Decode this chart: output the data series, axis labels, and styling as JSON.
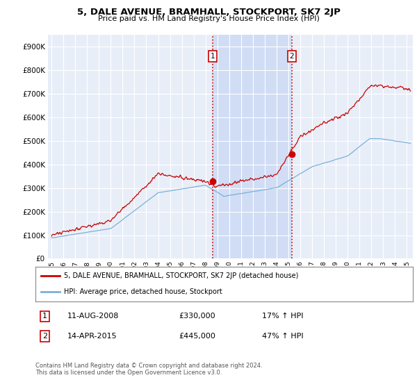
{
  "title": "5, DALE AVENUE, BRAMHALL, STOCKPORT, SK7 2JP",
  "subtitle": "Price paid vs. HM Land Registry's House Price Index (HPI)",
  "ytick_values": [
    0,
    100000,
    200000,
    300000,
    400000,
    500000,
    600000,
    700000,
    800000,
    900000
  ],
  "ylim": [
    0,
    950000
  ],
  "xlim_start": 1994.7,
  "xlim_end": 2025.5,
  "bg_color": "#ffffff",
  "plot_bg_color": "#e8eef8",
  "shade_color": "#d0ddf5",
  "grid_color": "#ffffff",
  "line1_color": "#cc0000",
  "line2_color": "#7ab0d8",
  "transaction1_x": 2008.6,
  "transaction1_y": 330000,
  "transaction2_x": 2015.28,
  "transaction2_y": 445000,
  "vline_color": "#cc0000",
  "legend_line1": "5, DALE AVENUE, BRAMHALL, STOCKPORT, SK7 2JP (detached house)",
  "legend_line2": "HPI: Average price, detached house, Stockport",
  "annotation1_date": "11-AUG-2008",
  "annotation1_price": "£330,000",
  "annotation1_hpi": "17% ↑ HPI",
  "annotation2_date": "14-APR-2015",
  "annotation2_price": "£445,000",
  "annotation2_hpi": "47% ↑ HPI",
  "footer": "Contains HM Land Registry data © Crown copyright and database right 2024.\nThis data is licensed under the Open Government Licence v3.0.",
  "xtick_years": [
    1995,
    1996,
    1997,
    1998,
    1999,
    2000,
    2001,
    2002,
    2003,
    2004,
    2005,
    2006,
    2007,
    2008,
    2009,
    2010,
    2011,
    2012,
    2013,
    2014,
    2015,
    2016,
    2017,
    2018,
    2019,
    2020,
    2021,
    2022,
    2023,
    2024,
    2025
  ]
}
